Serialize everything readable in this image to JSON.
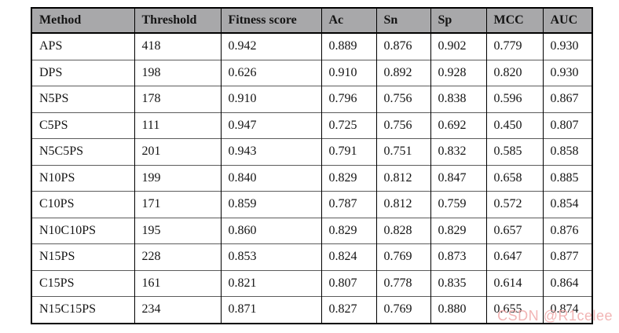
{
  "chart_data": {
    "type": "table",
    "columns": [
      "Method",
      "Threshold",
      "Fitness score",
      "Ac",
      "Sn",
      "Sp",
      "MCC",
      "AUC"
    ],
    "rows": [
      [
        "APS",
        "418",
        "0.942",
        "0.889",
        "0.876",
        "0.902",
        "0.779",
        "0.930"
      ],
      [
        "DPS",
        "198",
        "0.626",
        "0.910",
        "0.892",
        "0.928",
        "0.820",
        "0.930"
      ],
      [
        "N5PS",
        "178",
        "0.910",
        "0.796",
        "0.756",
        "0.838",
        "0.596",
        "0.867"
      ],
      [
        "C5PS",
        "111",
        "0.947",
        "0.725",
        "0.756",
        "0.692",
        "0.450",
        "0.807"
      ],
      [
        "N5C5PS",
        "201",
        "0.943",
        "0.791",
        "0.751",
        "0.832",
        "0.585",
        "0.858"
      ],
      [
        "N10PS",
        "199",
        "0.840",
        "0.829",
        "0.812",
        "0.847",
        "0.658",
        "0.885"
      ],
      [
        "C10PS",
        "171",
        "0.859",
        "0.787",
        "0.812",
        "0.759",
        "0.572",
        "0.854"
      ],
      [
        "N10C10PS",
        "195",
        "0.860",
        "0.829",
        "0.828",
        "0.829",
        "0.657",
        "0.876"
      ],
      [
        "N15PS",
        "228",
        "0.853",
        "0.824",
        "0.769",
        "0.873",
        "0.647",
        "0.877"
      ],
      [
        "C15PS",
        "161",
        "0.821",
        "0.807",
        "0.778",
        "0.835",
        "0.614",
        "0.864"
      ],
      [
        "N15C15PS",
        "234",
        "0.871",
        "0.827",
        "0.769",
        "0.880",
        "0.655",
        "0.874"
      ]
    ]
  },
  "watermark": {
    "text": "CSDN @R1celee",
    "color": "#f0a8a8"
  },
  "colors": {
    "header_bg": "#a8a8aa",
    "outer_border": "#000000",
    "row_rule": "#5c5c5c"
  }
}
